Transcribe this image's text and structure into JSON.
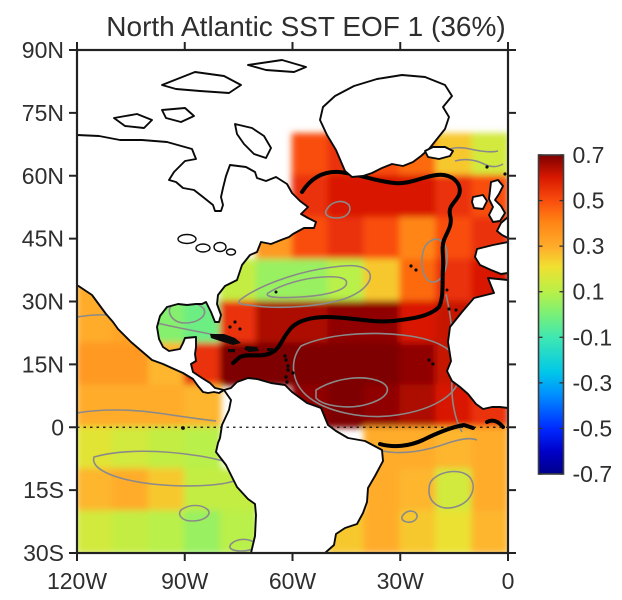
{
  "title": "North Atlantic SST EOF 1 (36%)",
  "chart_data": {
    "type": "heatmap",
    "title": "North Atlantic SST EOF 1 (36%)",
    "xlabel": "",
    "ylabel": "",
    "projection": "lat-lon map, North Atlantic",
    "lon_range": [
      -120,
      0
    ],
    "lat_range": [
      -30,
      90
    ],
    "lon_ticks": [
      {
        "label": "120W",
        "deg": -120
      },
      {
        "label": "90W",
        "deg": -90
      },
      {
        "label": "60W",
        "deg": -60
      },
      {
        "label": "30W",
        "deg": -30
      },
      {
        "label": "0",
        "deg": 0
      }
    ],
    "lat_ticks": [
      {
        "label": "90N",
        "deg": 90
      },
      {
        "label": "75N",
        "deg": 75
      },
      {
        "label": "60N",
        "deg": 60
      },
      {
        "label": "45N",
        "deg": 45
      },
      {
        "label": "30N",
        "deg": 30
      },
      {
        "label": "15N",
        "deg": 15
      },
      {
        "label": "0",
        "deg": 0
      },
      {
        "label": "15S",
        "deg": -15
      },
      {
        "label": "30S",
        "deg": -30
      }
    ],
    "equator_line": "dashed",
    "thick_contour_level": 0.5,
    "colorbar": {
      "vmin": -0.7,
      "vmax": 0.7,
      "tick_labels": [
        "0.7",
        "0.5",
        "0.3",
        "0.1",
        "-0.1",
        "-0.3",
        "-0.5",
        "-0.7"
      ],
      "tick_values": [
        0.7,
        0.5,
        0.3,
        0.1,
        -0.1,
        -0.3,
        -0.5,
        -0.7
      ],
      "colormap": "jet",
      "stops": [
        [
          0.0,
          "#00008B"
        ],
        [
          0.07,
          "#0000C8"
        ],
        [
          0.14,
          "#0028FF"
        ],
        [
          0.25,
          "#0090FF"
        ],
        [
          0.32,
          "#00C8E8"
        ],
        [
          0.43,
          "#40E8B0"
        ],
        [
          0.5,
          "#78F078"
        ],
        [
          0.57,
          "#B8F048"
        ],
        [
          0.65,
          "#F0E030"
        ],
        [
          0.71,
          "#FFAE2C"
        ],
        [
          0.79,
          "#FF8414"
        ],
        [
          0.86,
          "#F94B0D"
        ],
        [
          0.93,
          "#D81800"
        ],
        [
          1.0,
          "#7E0000"
        ]
      ]
    },
    "grid": {
      "cell_deg": 10,
      "lon_centers": [
        -115,
        -105,
        -95,
        -85,
        -75,
        -65,
        -55,
        -45,
        -35,
        -25,
        -15,
        -5
      ],
      "lat_centers": [
        85,
        75,
        65,
        55,
        45,
        35,
        25,
        15,
        5,
        -5,
        -15,
        -25
      ],
      "values": [
        [
          null,
          null,
          null,
          null,
          null,
          null,
          null,
          null,
          null,
          null,
          null,
          null
        ],
        [
          null,
          null,
          null,
          null,
          null,
          null,
          null,
          null,
          null,
          null,
          null,
          null
        ],
        [
          null,
          null,
          null,
          null,
          null,
          null,
          0.5,
          0.55,
          0.5,
          0.45,
          0.25,
          0.15
        ],
        [
          null,
          null,
          null,
          null,
          null,
          null,
          0.55,
          0.6,
          0.6,
          0.6,
          0.55,
          0.5
        ],
        [
          null,
          null,
          null,
          null,
          null,
          0.35,
          0.5,
          0.55,
          0.5,
          0.4,
          0.5,
          0.55
        ],
        [
          0.3,
          null,
          null,
          null,
          0.12,
          0.05,
          0.05,
          0.1,
          0.25,
          0.45,
          0.55,
          0.6
        ],
        [
          0.3,
          0.32,
          0.02,
          -0.02,
          0.55,
          0.65,
          0.65,
          0.68,
          0.68,
          0.6,
          0.62,
          null
        ],
        [
          0.35,
          0.35,
          0.28,
          0.55,
          0.7,
          0.7,
          0.7,
          0.7,
          0.7,
          0.68,
          0.62,
          null
        ],
        [
          0.3,
          0.3,
          0.3,
          0.28,
          null,
          null,
          0.68,
          0.7,
          0.68,
          0.65,
          0.6,
          0.55
        ],
        [
          0.18,
          0.15,
          0.12,
          0.1,
          null,
          null,
          null,
          null,
          0.3,
          0.3,
          0.28,
          0.3
        ],
        [
          0.28,
          0.3,
          0.25,
          0.12,
          0.12,
          null,
          null,
          null,
          0.3,
          0.28,
          0.15,
          0.3
        ],
        [
          0.15,
          0.12,
          0.1,
          0.05,
          0.1,
          null,
          null,
          0.25,
          0.3,
          0.25,
          0.2,
          0.28
        ]
      ]
    }
  }
}
